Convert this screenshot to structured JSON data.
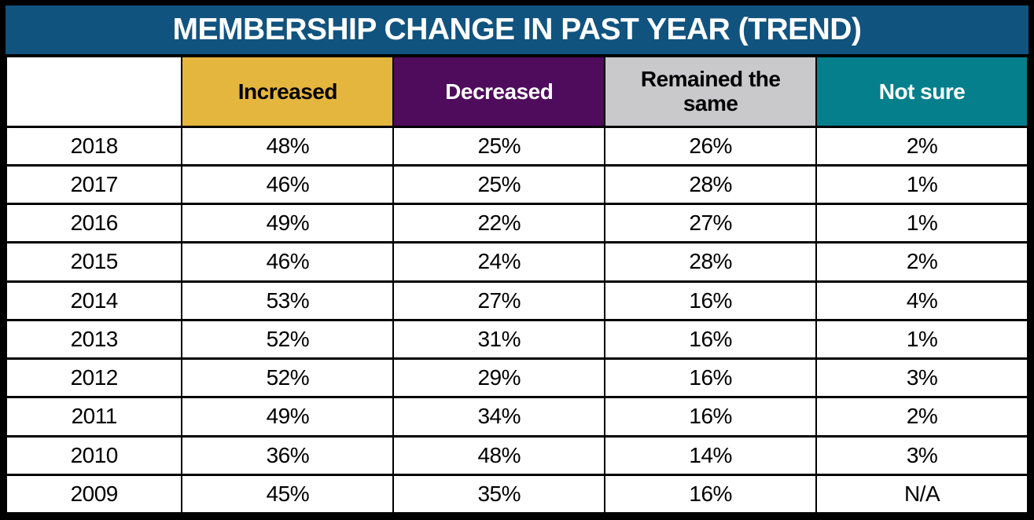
{
  "title": "MEMBERSHIP CHANGE IN PAST YEAR (TREND)",
  "colors": {
    "title_bar_bg": "#11537f",
    "title_text": "#ffffff",
    "increased_bg": "#e5b63d",
    "decreased_bg": "#4f0b5c",
    "remained_bg": "#c9c9cb",
    "not_sure_bg": "#067f8c",
    "border": "#000000",
    "cell_bg": "#ffffff",
    "cell_text": "#000000"
  },
  "chart_data": {
    "type": "table",
    "title": "MEMBERSHIP CHANGE IN PAST YEAR (TREND)",
    "columns": [
      "",
      "Increased",
      "Decreased",
      "Remained the same",
      "Not sure"
    ],
    "header_colors": [
      "#ffffff",
      "#e5b63d",
      "#4f0b5c",
      "#c9c9cb",
      "#067f8c"
    ],
    "header_text_colors": [
      "#000000",
      "#000000",
      "#ffffff",
      "#000000",
      "#ffffff"
    ],
    "rows": [
      [
        "2018",
        "48%",
        "25%",
        "26%",
        "2%"
      ],
      [
        "2017",
        "46%",
        "25%",
        "28%",
        "1%"
      ],
      [
        "2016",
        "49%",
        "22%",
        "27%",
        "1%"
      ],
      [
        "2015",
        "46%",
        "24%",
        "28%",
        "2%"
      ],
      [
        "2014",
        "53%",
        "27%",
        "16%",
        "4%"
      ],
      [
        "2013",
        "52%",
        "31%",
        "16%",
        "1%"
      ],
      [
        "2012",
        "52%",
        "29%",
        "16%",
        "3%"
      ],
      [
        "2011",
        "49%",
        "34%",
        "16%",
        "2%"
      ],
      [
        "2010",
        "36%",
        "48%",
        "14%",
        "3%"
      ],
      [
        "2009",
        "45%",
        "35%",
        "16%",
        "N/A"
      ]
    ]
  }
}
